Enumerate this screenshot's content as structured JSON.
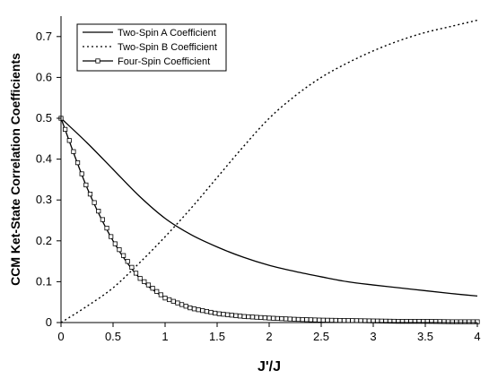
{
  "chart_data": {
    "type": "line",
    "xlabel": "J'/J",
    "ylabel": "CCM Ket-State Correlation Coefficients",
    "xlim": [
      0,
      4
    ],
    "ylim": [
      0,
      0.75
    ],
    "x_ticks": [
      0,
      0.5,
      1,
      1.5,
      2,
      2.5,
      3,
      3.5,
      4
    ],
    "x_tick_labels": [
      "0",
      "0.5",
      "1",
      "1.5",
      "2",
      "2.5",
      "3",
      "3.5",
      "4"
    ],
    "y_ticks": [
      0,
      0.1,
      0.2,
      0.3,
      0.4,
      0.5,
      0.6,
      0.7
    ],
    "y_tick_labels": [
      "0",
      "0.1",
      "0.2",
      "0.3",
      "0.4",
      "0.5",
      "0.6",
      "0.7"
    ],
    "grid": false,
    "legend_position": "top-left",
    "x": [
      0,
      0.25,
      0.5,
      0.75,
      1,
      1.25,
      1.5,
      1.75,
      2,
      2.25,
      2.5,
      2.75,
      3,
      3.25,
      3.5,
      3.75,
      4
    ],
    "series": [
      {
        "name": "Two-Spin A Coefficient",
        "style": "solid",
        "color": "#000000",
        "values": [
          0.5,
          0.44,
          0.375,
          0.31,
          0.255,
          0.215,
          0.185,
          0.16,
          0.14,
          0.125,
          0.112,
          0.1,
          0.092,
          0.085,
          0.078,
          0.071,
          0.065
        ]
      },
      {
        "name": "Two-Spin B Coefficient",
        "style": "dotted",
        "color": "#000000",
        "values": [
          0.0,
          0.04,
          0.085,
          0.145,
          0.21,
          0.28,
          0.355,
          0.43,
          0.5,
          0.555,
          0.6,
          0.635,
          0.665,
          0.69,
          0.71,
          0.725,
          0.74
        ]
      },
      {
        "name": "Four-Spin Coefficient",
        "style": "solid-square-markers",
        "color": "#000000",
        "values": [
          0.5,
          0.33,
          0.2,
          0.11,
          0.06,
          0.035,
          0.022,
          0.015,
          0.011,
          0.008,
          0.006,
          0.005,
          0.004,
          0.003,
          0.003,
          0.002,
          0.002
        ]
      }
    ]
  }
}
